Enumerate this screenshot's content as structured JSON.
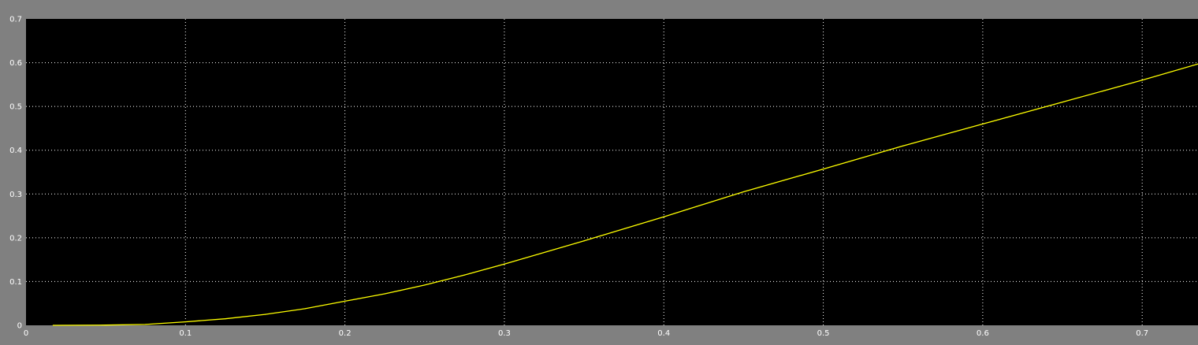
{
  "chart_data": {
    "type": "line",
    "title": "",
    "xlabel": "",
    "ylabel": "",
    "xlim": [
      0,
      0.735
    ],
    "ylim": [
      0,
      0.7
    ],
    "grid": true,
    "x_ticks": [
      0,
      0.1,
      0.2,
      0.3,
      0.4,
      0.5,
      0.6,
      0.7
    ],
    "x_tick_labels": [
      "0",
      "0.1",
      "0.2",
      "0.3",
      "0.4",
      "0.5",
      "0.6",
      "0.7"
    ],
    "y_ticks": [
      0,
      0.1,
      0.2,
      0.3,
      0.4,
      0.5,
      0.6,
      0.7
    ],
    "y_tick_labels": [
      "0",
      "0.1",
      "0.2",
      "0.3",
      "0.4",
      "0.5",
      "0.6",
      "0.7"
    ],
    "colors": {
      "frame": "#808080",
      "plot_background": "#000000",
      "grid": "#ffffff",
      "axis_text": "#ffffff",
      "line": "#ffff00"
    },
    "series": [
      {
        "x": [
          0.017,
          0.05,
          0.075,
          0.1,
          0.125,
          0.15,
          0.175,
          0.2,
          0.225,
          0.25,
          0.275,
          0.3,
          0.35,
          0.4,
          0.45,
          0.5,
          0.55,
          0.6,
          0.65,
          0.7,
          0.735
        ],
        "y": [
          0,
          0.0005,
          0.002,
          0.008,
          0.015,
          0.025,
          0.038,
          0.055,
          0.072,
          0.092,
          0.115,
          0.14,
          0.193,
          0.248,
          0.305,
          0.357,
          0.41,
          0.46,
          0.51,
          0.56,
          0.597
        ]
      }
    ]
  }
}
